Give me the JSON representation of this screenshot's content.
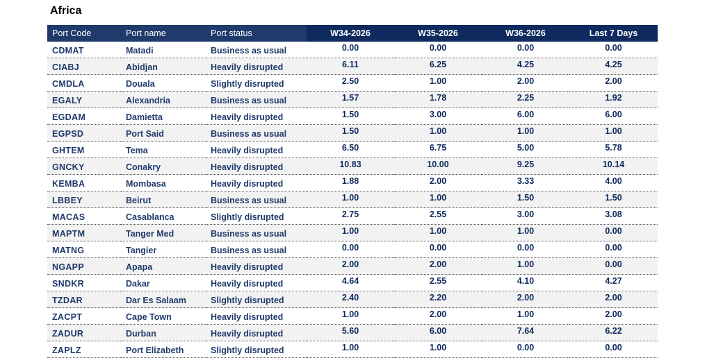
{
  "region": "Africa",
  "columns": {
    "code": "Port Code",
    "name": "Port name",
    "status": "Port status",
    "w34": "W34-2026",
    "w35": "W35-2026",
    "w36": "W36-2026",
    "last7": "Last 7 Days"
  },
  "rows": [
    {
      "code": "CDMAT",
      "name": "Matadi",
      "status": "Business as usual",
      "w34": "0.00",
      "w35": "0.00",
      "w36": "0.00",
      "last7": "0.00"
    },
    {
      "code": "CIABJ",
      "name": "Abidjan",
      "status": "Heavily disrupted",
      "w34": "6.11",
      "w35": "6.25",
      "w36": "4.25",
      "last7": "4.25"
    },
    {
      "code": "CMDLA",
      "name": "Douala",
      "status": "Slightly disrupted",
      "w34": "2.50",
      "w35": "1.00",
      "w36": "2.00",
      "last7": "2.00"
    },
    {
      "code": "EGALY",
      "name": "Alexandria",
      "status": "Business as usual",
      "w34": "1.57",
      "w35": "1.78",
      "w36": "2.25",
      "last7": "1.92"
    },
    {
      "code": "EGDAM",
      "name": "Damietta",
      "status": "Heavily disrupted",
      "w34": "1.50",
      "w35": "3.00",
      "w36": "6.00",
      "last7": "6.00"
    },
    {
      "code": "EGPSD",
      "name": "Port Said",
      "status": "Business as usual",
      "w34": "1.50",
      "w35": "1.00",
      "w36": "1.00",
      "last7": "1.00"
    },
    {
      "code": "GHTEM",
      "name": "Tema",
      "status": "Heavily disrupted",
      "w34": "6.50",
      "w35": "6.75",
      "w36": "5.00",
      "last7": "5.78"
    },
    {
      "code": "GNCKY",
      "name": "Conakry",
      "status": "Heavily disrupted",
      "w34": "10.83",
      "w35": "10.00",
      "w36": "9.25",
      "last7": "10.14"
    },
    {
      "code": "KEMBA",
      "name": "Mombasa",
      "status": "Heavily disrupted",
      "w34": "1.88",
      "w35": "2.00",
      "w36": "3.33",
      "last7": "4.00"
    },
    {
      "code": "LBBEY",
      "name": "Beirut",
      "status": "Business as usual",
      "w34": "1.00",
      "w35": "1.00",
      "w36": "1.50",
      "last7": "1.50"
    },
    {
      "code": "MACAS",
      "name": "Casablanca",
      "status": "Slightly disrupted",
      "w34": "2.75",
      "w35": "2.55",
      "w36": "3.00",
      "last7": "3.08"
    },
    {
      "code": "MAPTM",
      "name": "Tanger Med",
      "status": "Business as usual",
      "w34": "1.00",
      "w35": "1.00",
      "w36": "1.00",
      "last7": "0.00"
    },
    {
      "code": "MATNG",
      "name": "Tangier",
      "status": "Business as usual",
      "w34": "0.00",
      "w35": "0.00",
      "w36": "0.00",
      "last7": "0.00"
    },
    {
      "code": "NGAPP",
      "name": "Apapa",
      "status": "Heavily disrupted",
      "w34": "2.00",
      "w35": "2.00",
      "w36": "1.00",
      "last7": "0.00"
    },
    {
      "code": "SNDKR",
      "name": "Dakar",
      "status": "Heavily disrupted",
      "w34": "4.64",
      "w35": "2.55",
      "w36": "4.10",
      "last7": "4.27"
    },
    {
      "code": "TZDAR",
      "name": "Dar Es Salaam",
      "status": "Slightly disrupted",
      "w34": "2.40",
      "w35": "2.20",
      "w36": "2.00",
      "last7": "2.00"
    },
    {
      "code": "ZACPT",
      "name": "Cape Town",
      "status": "Heavily disrupted",
      "w34": "1.00",
      "w35": "2.00",
      "w36": "1.00",
      "last7": "2.00"
    },
    {
      "code": "ZADUR",
      "name": "Durban",
      "status": "Heavily disrupted",
      "w34": "5.60",
      "w35": "6.00",
      "w36": "7.64",
      "last7": "6.22"
    },
    {
      "code": "ZAPLZ",
      "name": "Port Elizabeth",
      "status": "Slightly disrupted",
      "w34": "1.00",
      "w35": "1.00",
      "w36": "0.00",
      "last7": "0.00"
    }
  ]
}
